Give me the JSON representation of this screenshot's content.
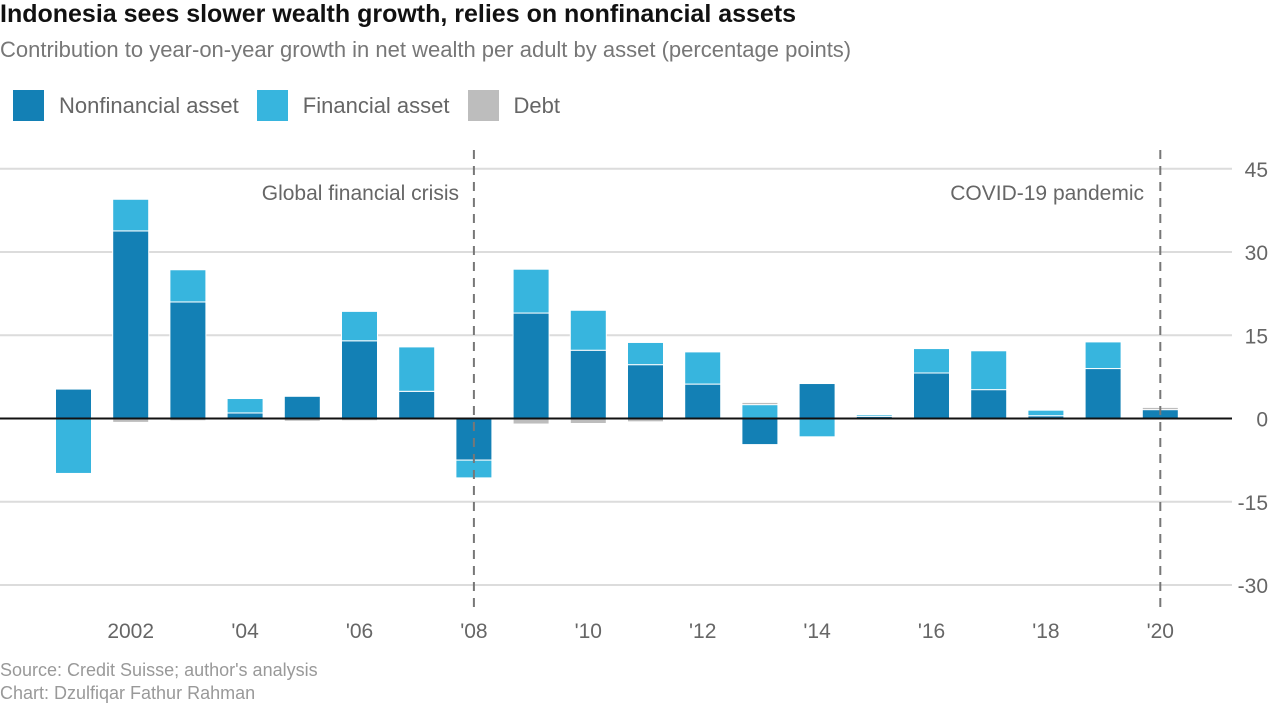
{
  "title": "Indonesia sees slower wealth growth, relies on nonfinancial assets",
  "subtitle": "Contribution to year-on-year growth in net wealth per adult by asset (percentage points)",
  "legend": [
    {
      "label": "Nonfinancial asset",
      "color": "#1380b5"
    },
    {
      "label": "Financial asset",
      "color": "#37b5de"
    },
    {
      "label": "Debt",
      "color": "#bdbdbd"
    }
  ],
  "annotations": {
    "gfc": "Global financial crisis",
    "covid": "COVID-19 pandemic"
  },
  "source": "Source: Credit Suisse; author's analysis",
  "credit": "Chart: Dzulfiqar Fathur Rahman",
  "chart_data": {
    "type": "bar",
    "stacked": true,
    "x": [
      2001,
      2002,
      2003,
      2004,
      2005,
      2006,
      2007,
      2008,
      2009,
      2010,
      2011,
      2012,
      2013,
      2014,
      2015,
      2016,
      2017,
      2018,
      2019,
      2020
    ],
    "x_tick_values": [
      2002,
      2004,
      2006,
      2008,
      2010,
      2012,
      2014,
      2016,
      2018,
      2020
    ],
    "x_tick_labels": [
      "2002",
      "'04",
      "'06",
      "'08",
      "'10",
      "'12",
      "'14",
      "'16",
      "'18",
      "'20"
    ],
    "y_ticks": [
      45,
      30,
      15,
      0,
      -15,
      -30
    ],
    "ylim": [
      -31,
      48
    ],
    "y_axis_side": "right",
    "grid": true,
    "legend_position": "top-left",
    "series": [
      {
        "name": "Nonfinancial asset",
        "color": "#1380b5",
        "values": [
          5.3,
          33.8,
          21.0,
          1.0,
          4.0,
          14.0,
          4.9,
          -7.5,
          19.0,
          12.3,
          9.7,
          6.2,
          -4.7,
          6.3,
          0.4,
          8.2,
          5.2,
          0.5,
          9.0,
          1.6
        ]
      },
      {
        "name": "Financial asset",
        "color": "#37b5de",
        "values": [
          -9.9,
          5.7,
          5.8,
          2.6,
          0.0,
          5.3,
          8.0,
          -3.2,
          7.9,
          7.2,
          4.0,
          5.8,
          2.5,
          -3.3,
          0.3,
          4.4,
          7.0,
          1.0,
          4.8,
          0.0
        ]
      },
      {
        "name": "Debt",
        "color": "#bdbdbd",
        "values": [
          0.0,
          -0.7,
          -0.4,
          0.0,
          -0.5,
          -0.4,
          0.0,
          0.0,
          -1.0,
          -0.9,
          -0.6,
          0.0,
          0.4,
          0.0,
          0.0,
          0.0,
          0.0,
          0.0,
          0.0,
          0.4
        ]
      }
    ],
    "event_lines": [
      2008,
      2020
    ]
  }
}
